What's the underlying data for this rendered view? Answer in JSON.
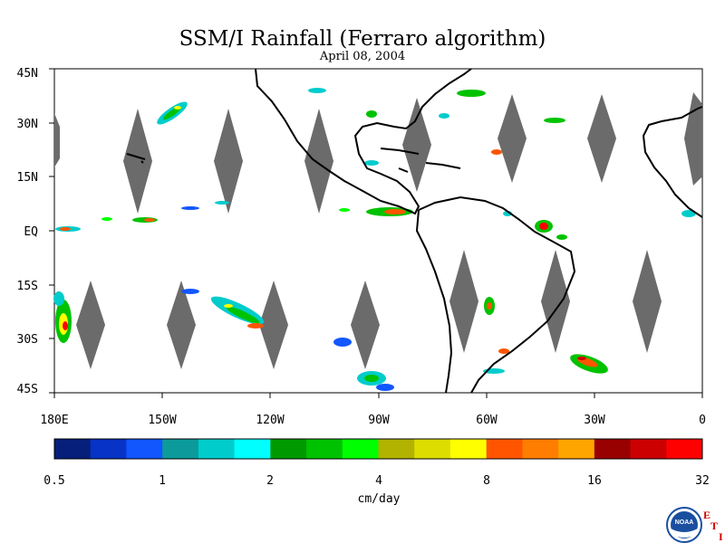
{
  "title": "SSM/I Rainfall (Ferraro algorithm)",
  "subtitle": "April 08, 2004",
  "map": {
    "lon_labels": [
      "180E",
      "150W",
      "120W",
      "90W",
      "60W",
      "30W",
      "0"
    ],
    "lat_labels": [
      "45N",
      "30N",
      "15N",
      "EQ",
      "15S",
      "30S",
      "45S"
    ],
    "lon_range": [
      -180,
      0
    ],
    "lat_range": [
      -45,
      45
    ],
    "missing_color": "#6b6b6b",
    "coast_color": "#000000"
  },
  "colorbar": {
    "unit": "cm/day",
    "tick_labels": [
      "0.5",
      "1",
      "2",
      "4",
      "8",
      "16",
      "32"
    ],
    "colors": [
      "#061f7a",
      "#0733c6",
      "#1156ff",
      "#0c9a9a",
      "#00cccc",
      "#00ffff",
      "#009a00",
      "#00c200",
      "#00ff00",
      "#b2b200",
      "#dddd00",
      "#ffff00",
      "#ff5500",
      "#ff7d00",
      "#ffa500",
      "#990000",
      "#cc0000",
      "#ff0000"
    ]
  },
  "logo": {
    "text": "NOAA",
    "letters": [
      "E",
      "T",
      "I"
    ]
  }
}
